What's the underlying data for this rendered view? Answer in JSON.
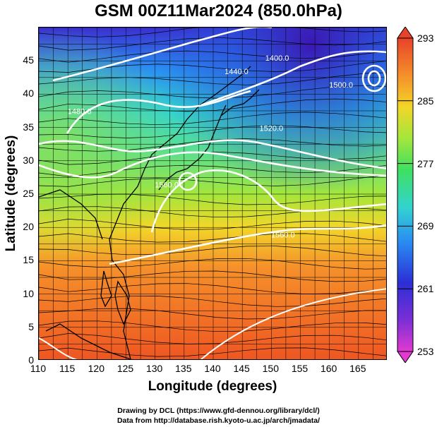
{
  "title": "GSM 00Z11Mar2024 (850.0hPa)",
  "chart_data": {
    "type": "map",
    "xlabel": "Longitude (degrees)",
    "ylabel": "Latitude  (degrees)",
    "xlim": [
      110,
      170
    ],
    "ylim": [
      0,
      50
    ],
    "xticks": [
      110,
      115,
      120,
      125,
      130,
      135,
      140,
      145,
      150,
      155,
      160,
      165
    ],
    "yticks": [
      0,
      5,
      10,
      15,
      20,
      25,
      30,
      35,
      40,
      45
    ],
    "colorbar": {
      "min": 253,
      "max": 293,
      "ticks": [
        253,
        261,
        269,
        277,
        285,
        293
      ]
    },
    "contours": [
      {
        "label": "1400.0",
        "lon": 151,
        "lat": 45
      },
      {
        "label": "1440.0",
        "lon": 144,
        "lat": 43
      },
      {
        "label": "1480.0",
        "lon": 117,
        "lat": 37
      },
      {
        "label": "1520.0",
        "lon": 150,
        "lat": 34.5
      },
      {
        "label": "1560.0",
        "lon": 132,
        "lat": 26
      },
      {
        "label": "1560.0",
        "lon": 152,
        "lat": 18.5
      },
      {
        "label": "1500.0",
        "lon": 162,
        "lat": 41
      }
    ]
  },
  "credits": {
    "line1": "Drawing by DCL (https://www.gfd-dennou.org/library/dcl/)",
    "line2": "Data from http://database.rish.kyoto-u.ac.jp/arch/jmadata/"
  }
}
